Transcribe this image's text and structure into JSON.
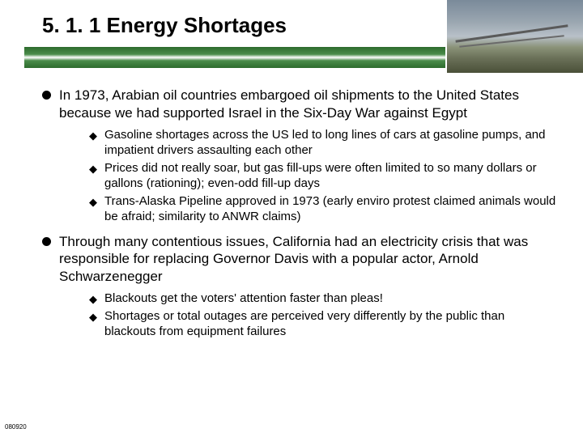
{
  "title": "5. 1. 1 Energy Shortages",
  "header_bar_color_dark": "#2d6b2d",
  "header_bar_color_light": "#4a8c4a",
  "bullets": [
    {
      "text": "In 1973, Arabian oil countries embargoed oil shipments to the United States because we had supported Israel in the Six-Day War against Egypt",
      "subs": [
        "Gasoline shortages across the US led to long lines of cars at gasoline pumps, and impatient drivers assaulting each other",
        "Prices did not really soar, but gas fill-ups were often limited to so many dollars or gallons (rationing); even-odd fill-up days",
        "Trans-Alaska Pipeline approved in 1973 (early enviro protest claimed animals would be afraid; similarity to ANWR claims)"
      ]
    },
    {
      "text": "Through many contentious issues, California had an electricity crisis that was responsible for replacing Governor Davis with a popular actor, Arnold Schwarzenegger",
      "subs": [
        "Blackouts get the voters' attention faster than pleas!",
        "Shortages or total outages are perceived very differently by the public than blackouts from equipment failures"
      ]
    }
  ],
  "footer_code": "080920"
}
